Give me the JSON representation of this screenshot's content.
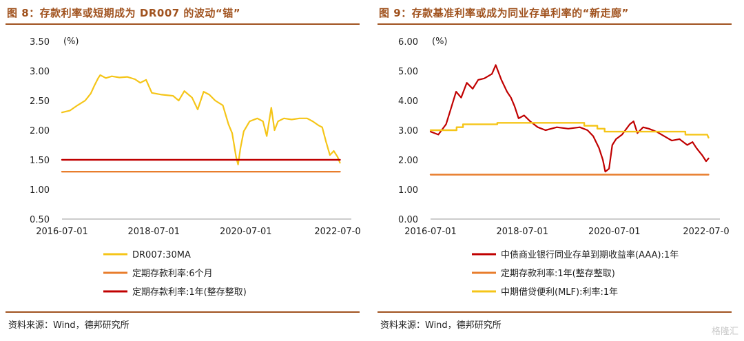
{
  "left": {
    "title": "图 8：存款利率或短期成为 DR007 的波动“锚”",
    "source": "资料来源：Wind，德邦研究所"
  },
  "right": {
    "title": "图 9：存款基准利率或成为同业存单利率的“新走廊”",
    "source": "资料来源：Wind，德邦研究所"
  },
  "watermark": "格隆汇",
  "chart_data": [
    {
      "type": "line",
      "title": "",
      "unit_label": "(%)",
      "xlabel": "",
      "ylabel": "",
      "ylim": [
        0.5,
        3.5
      ],
      "yticks": [
        "3.50",
        "3.00",
        "2.50",
        "2.00",
        "1.50",
        "1.00",
        "0.50"
      ],
      "xlim": [
        "2016-07-01",
        "2022-07-01"
      ],
      "xticks": [
        "2016-07-01",
        "2018-07-01",
        "2020-07-01",
        "2022-07-0"
      ],
      "grid": false,
      "legend_position": "bottom",
      "series": [
        {
          "name": "DR007:30MA",
          "color": "#f5c518",
          "points": [
            [
              "2016-07-01",
              2.3
            ],
            [
              "2016-09-01",
              2.33
            ],
            [
              "2016-11-01",
              2.42
            ],
            [
              "2017-01-01",
              2.5
            ],
            [
              "2017-02-15",
              2.62
            ],
            [
              "2017-03-15",
              2.75
            ],
            [
              "2017-04-15",
              2.88
            ],
            [
              "2017-05-01",
              2.93
            ],
            [
              "2017-06-15",
              2.88
            ],
            [
              "2017-08-01",
              2.91
            ],
            [
              "2017-10-01",
              2.89
            ],
            [
              "2017-12-01",
              2.9
            ],
            [
              "2018-02-01",
              2.86
            ],
            [
              "2018-03-15",
              2.8
            ],
            [
              "2018-05-01",
              2.85
            ],
            [
              "2018-06-15",
              2.63
            ],
            [
              "2018-09-01",
              2.6
            ],
            [
              "2018-12-01",
              2.58
            ],
            [
              "2019-01-15",
              2.5
            ],
            [
              "2019-03-01",
              2.66
            ],
            [
              "2019-05-01",
              2.55
            ],
            [
              "2019-06-15",
              2.35
            ],
            [
              "2019-08-01",
              2.65
            ],
            [
              "2019-09-15",
              2.6
            ],
            [
              "2019-11-01",
              2.5
            ],
            [
              "2020-01-01",
              2.42
            ],
            [
              "2020-02-15",
              2.1
            ],
            [
              "2020-03-15",
              1.95
            ],
            [
              "2020-04-15",
              1.55
            ],
            [
              "2020-05-01",
              1.42
            ],
            [
              "2020-05-20",
              1.7
            ],
            [
              "2020-06-15",
              1.98
            ],
            [
              "2020-08-01",
              2.15
            ],
            [
              "2020-10-01",
              2.2
            ],
            [
              "2020-11-15",
              2.15
            ],
            [
              "2020-12-15",
              1.9
            ],
            [
              "2021-01-20",
              2.38
            ],
            [
              "2021-02-15",
              2.0
            ],
            [
              "2021-03-15",
              2.15
            ],
            [
              "2021-05-01",
              2.2
            ],
            [
              "2021-07-01",
              2.18
            ],
            [
              "2021-09-01",
              2.2
            ],
            [
              "2021-11-01",
              2.2
            ],
            [
              "2021-12-15",
              2.15
            ],
            [
              "2022-02-01",
              2.08
            ],
            [
              "2022-03-01",
              2.05
            ],
            [
              "2022-04-01",
              1.8
            ],
            [
              "2022-05-01",
              1.58
            ],
            [
              "2022-06-01",
              1.65
            ],
            [
              "2022-07-01",
              1.55
            ],
            [
              "2022-07-20",
              1.45
            ]
          ]
        },
        {
          "name": "定期存款利率:6个月",
          "color": "#e87d2c",
          "points": [
            [
              "2016-07-01",
              1.3
            ],
            [
              "2022-07-20",
              1.3
            ]
          ]
        },
        {
          "name": "定期存款利率:1年(整存整取)",
          "color": "#c00000",
          "points": [
            [
              "2016-07-01",
              1.5
            ],
            [
              "2022-07-20",
              1.5
            ]
          ]
        }
      ]
    },
    {
      "type": "line",
      "title": "",
      "unit_label": "(%)",
      "xlabel": "",
      "ylabel": "",
      "ylim": [
        0.0,
        6.0
      ],
      "yticks": [
        "6.00",
        "5.00",
        "4.00",
        "3.00",
        "2.00",
        "1.00",
        "0.00"
      ],
      "xlim": [
        "2016-07-01",
        "2022-07-01"
      ],
      "xticks": [
        "2016-07-01",
        "2018-07-01",
        "2020-07-01",
        "2022-07-0"
      ],
      "grid": false,
      "legend_position": "bottom",
      "series": [
        {
          "name": "中债商业银行同业存单到期收益率(AAA):1年",
          "color": "#c00000",
          "points": [
            [
              "2016-07-01",
              2.95
            ],
            [
              "2016-09-01",
              2.85
            ],
            [
              "2016-11-01",
              3.2
            ],
            [
              "2016-12-15",
              3.8
            ],
            [
              "2017-01-20",
              4.3
            ],
            [
              "2017-03-01",
              4.1
            ],
            [
              "2017-04-15",
              4.6
            ],
            [
              "2017-06-01",
              4.4
            ],
            [
              "2017-07-15",
              4.7
            ],
            [
              "2017-09-01",
              4.75
            ],
            [
              "2017-11-01",
              4.9
            ],
            [
              "2017-12-01",
              5.2
            ],
            [
              "2018-01-15",
              4.7
            ],
            [
              "2018-03-01",
              4.3
            ],
            [
              "2018-04-01",
              4.1
            ],
            [
              "2018-05-01",
              3.8
            ],
            [
              "2018-06-01",
              3.4
            ],
            [
              "2018-07-15",
              3.5
            ],
            [
              "2018-09-01",
              3.3
            ],
            [
              "2018-11-01",
              3.1
            ],
            [
              "2019-01-01",
              3.0
            ],
            [
              "2019-04-01",
              3.1
            ],
            [
              "2019-07-01",
              3.05
            ],
            [
              "2019-10-01",
              3.1
            ],
            [
              "2019-12-01",
              3.0
            ],
            [
              "2020-01-15",
              2.8
            ],
            [
              "2020-03-01",
              2.4
            ],
            [
              "2020-04-01",
              2.0
            ],
            [
              "2020-04-20",
              1.6
            ],
            [
              "2020-05-20",
              1.7
            ],
            [
              "2020-06-15",
              2.5
            ],
            [
              "2020-07-15",
              2.7
            ],
            [
              "2020-09-01",
              2.85
            ],
            [
              "2020-11-01",
              3.2
            ],
            [
              "2020-12-01",
              3.3
            ],
            [
              "2021-01-01",
              2.9
            ],
            [
              "2021-02-15",
              3.1
            ],
            [
              "2021-04-01",
              3.05
            ],
            [
              "2021-06-01",
              2.95
            ],
            [
              "2021-08-01",
              2.8
            ],
            [
              "2021-10-01",
              2.65
            ],
            [
              "2021-12-01",
              2.7
            ],
            [
              "2022-02-01",
              2.5
            ],
            [
              "2022-03-15",
              2.6
            ],
            [
              "2022-04-15",
              2.4
            ],
            [
              "2022-06-01",
              2.15
            ],
            [
              "2022-07-01",
              1.95
            ],
            [
              "2022-07-20",
              2.05
            ]
          ]
        },
        {
          "name": "定期存款利率:1年(整存整取)",
          "color": "#e87d2c",
          "points": [
            [
              "2016-07-01",
              1.5
            ],
            [
              "2022-07-20",
              1.5
            ]
          ]
        },
        {
          "name": "中期借贷便利(MLF):利率:1年",
          "color": "#f5c518",
          "points": [
            [
              "2016-07-01",
              3.0
            ],
            [
              "2017-01-24",
              3.0
            ],
            [
              "2017-01-24",
              3.1
            ],
            [
              "2017-03-16",
              3.1
            ],
            [
              "2017-03-16",
              3.2
            ],
            [
              "2017-12-14",
              3.2
            ],
            [
              "2017-12-14",
              3.25
            ],
            [
              "2019-11-05",
              3.25
            ],
            [
              "2019-11-05",
              3.15
            ],
            [
              "2020-02-17",
              3.15
            ],
            [
              "2020-02-17",
              3.05
            ],
            [
              "2020-04-15",
              3.05
            ],
            [
              "2020-04-15",
              2.95
            ],
            [
              "2022-01-17",
              2.95
            ],
            [
              "2022-01-17",
              2.85
            ],
            [
              "2022-07-10",
              2.85
            ],
            [
              "2022-07-20",
              2.75
            ]
          ]
        }
      ]
    }
  ]
}
